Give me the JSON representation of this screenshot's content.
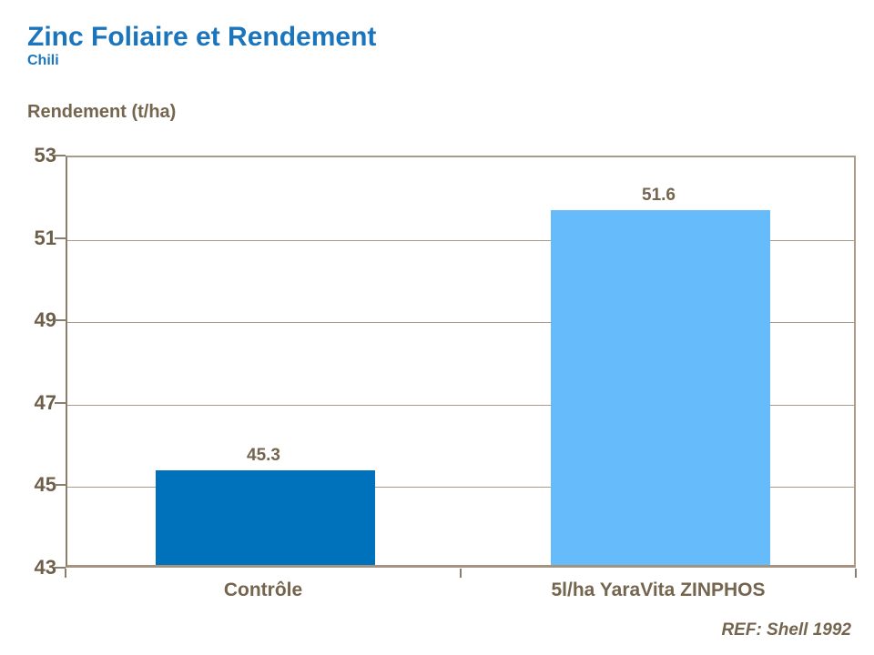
{
  "header": {
    "title": "Zinc Foliaire et Rendement",
    "subtitle": "Chili"
  },
  "footer": {
    "ref": "REF: Shell 1992"
  },
  "colors": {
    "title_blue": "#1B75BC",
    "label_brown": "#75654E",
    "tick_label_brown": "#6E5F4A",
    "gridline": "#A89B87",
    "axis_line": "#8C7E6A",
    "plot_border": "#A99C8B",
    "bar_control": "#0072BC",
    "bar_treated": "#66BBFA"
  },
  "chart_data": {
    "type": "bar",
    "title": "Zinc Foliaire et Rendement",
    "subtitle": "Chili",
    "ylabel": "Rendement (t/ha)",
    "categories": [
      "Contrôle",
      "5l/ha YaraVita ZINPHOS"
    ],
    "values": [
      45.3,
      51.6
    ],
    "value_labels": [
      "45.3",
      "51.6"
    ],
    "bar_colors": [
      "#0072BC",
      "#66BBFA"
    ],
    "ylim": [
      43,
      53
    ],
    "yticks": [
      43,
      45,
      47,
      49,
      51,
      53
    ],
    "grid": true,
    "legend": "none",
    "annotation": "REF: Shell 1992"
  }
}
